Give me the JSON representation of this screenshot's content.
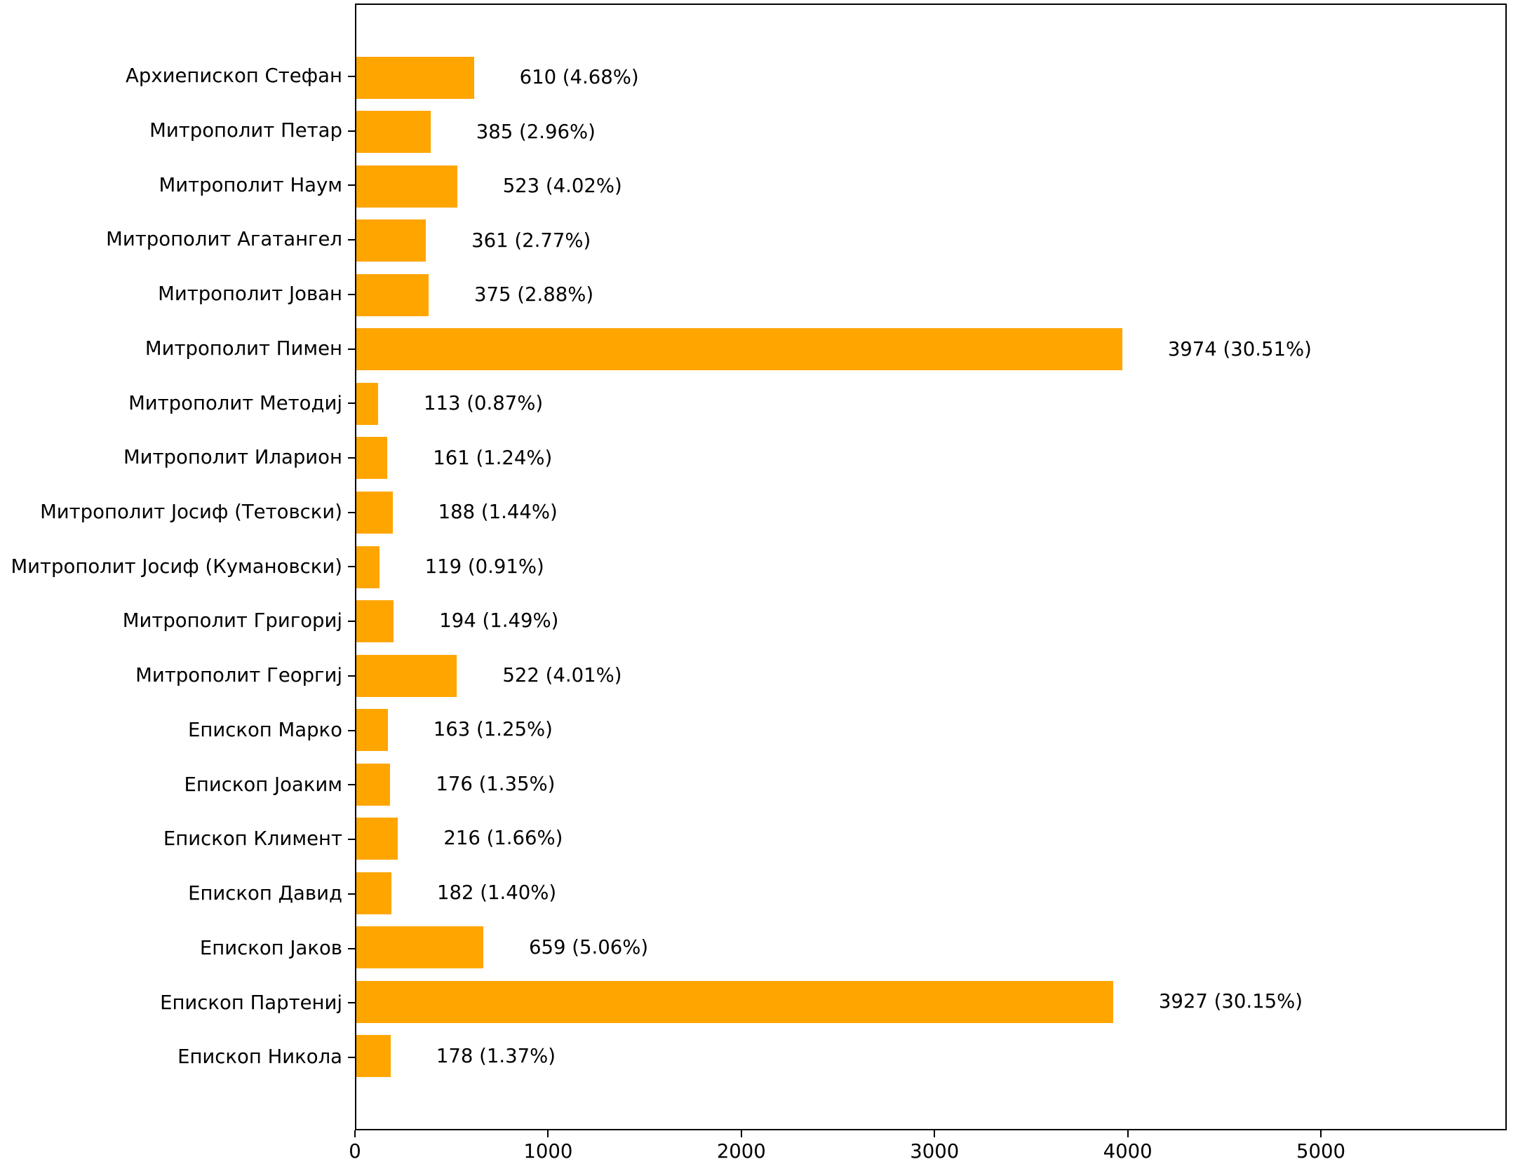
{
  "chart_data": {
    "type": "bar",
    "orientation": "horizontal",
    "title": "",
    "xlabel": "",
    "ylabel": "",
    "grid": false,
    "legend": null,
    "bar_color": "#FFA500",
    "axis_color": "#000000",
    "xlim": [
      0,
      5962
    ],
    "x_ticks": [
      0,
      1000,
      2000,
      3000,
      4000,
      5000
    ],
    "x_tick_labels": [
      "0",
      "1000",
      "2000",
      "3000",
      "4000",
      "5000"
    ],
    "categories": [
      "Архиепископ Стефан",
      "Митрополит Петар",
      "Митрополит Наум",
      "Митрополит Агатангел",
      "Митрополит Јован",
      "Митрополит Пимен",
      "Митрополит Методиј",
      "Митрополит Иларион",
      "Митрополит Јосиф (Тетовски)",
      "Митрополит Јосиф (Кумановски)",
      "Митрополит Григориј",
      "Митрополит Георгиј",
      "Епископ Марко",
      "Епископ Јоаким",
      "Епископ Климент",
      "Епископ Давид",
      "Епископ Јаков",
      "Епископ Партениј",
      "Епископ Никола"
    ],
    "values": [
      610,
      385,
      523,
      361,
      375,
      3974,
      113,
      161,
      188,
      119,
      194,
      522,
      163,
      176,
      216,
      182,
      659,
      3927,
      178
    ],
    "percentages": [
      4.68,
      2.96,
      4.02,
      2.77,
      2.88,
      30.51,
      0.87,
      1.24,
      1.44,
      0.91,
      1.49,
      4.01,
      1.25,
      1.35,
      1.66,
      1.4,
      5.06,
      30.15,
      1.37
    ],
    "annotations": [
      "610 (4.68%)",
      "385 (2.96%)",
      "523 (4.02%)",
      "361 (2.77%)",
      "375 (2.88%)",
      "3974 (30.51%)",
      "113 (0.87%)",
      "161 (1.24%)",
      "188 (1.44%)",
      "119 (0.91%)",
      "194 (1.49%)",
      "522 (4.01%)",
      "163 (1.25%)",
      "176 (1.35%)",
      "216 (1.66%)",
      "182 (1.40%)",
      "659 (5.06%)",
      "3927 (30.15%)",
      "178 (1.37%)"
    ]
  }
}
